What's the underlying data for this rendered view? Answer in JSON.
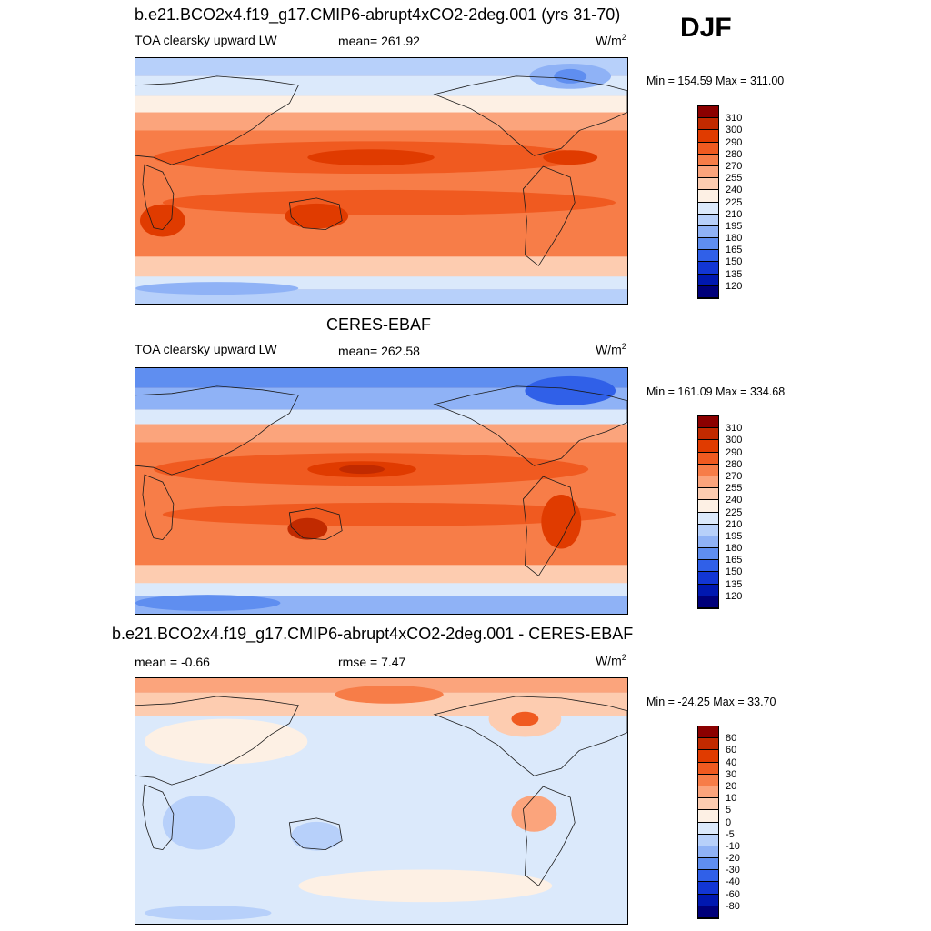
{
  "season": "DJF",
  "units_base": "W/m",
  "units_exp": "2",
  "panels": [
    {
      "title": "b.e21.BCO2x4.f19_g17.CMIP6-abrupt4xCO2-2deg.001 (yrs 31-70)",
      "left_label": "TOA clearsky upward LW",
      "center_label": "mean= 261.92",
      "minmax": "Min = 154.59 Max = 311.00"
    },
    {
      "title": "CERES-EBAF",
      "left_label": "TOA clearsky upward LW",
      "center_label": "mean= 262.58",
      "minmax": "Min = 161.09 Max = 334.68"
    },
    {
      "title": "b.e21.BCO2x4.f19_g17.CMIP6-abrupt4xCO2-2deg.001 - CERES-EBAF",
      "left_label": "mean =  -0.66",
      "center_label": "rmse =   7.47",
      "minmax": "Min = -24.25 Max =  33.70"
    }
  ],
  "colorbars": {
    "field": {
      "labels": [
        "310",
        "300",
        "290",
        "280",
        "270",
        "255",
        "240",
        "225",
        "210",
        "195",
        "180",
        "165",
        "150",
        "135",
        "120"
      ],
      "colors": [
        "#8b0000",
        "#c12a00",
        "#e03b00",
        "#f05a20",
        "#f77d48",
        "#fba47c",
        "#fdccb0",
        "#fdf0e4",
        "#dbe9fb",
        "#b7d0fa",
        "#8fb2f6",
        "#5f8ef0",
        "#3060e8",
        "#1236d4",
        "#0018b0",
        "#00007a"
      ]
    },
    "diff": {
      "labels": [
        "80",
        "60",
        "40",
        "30",
        "20",
        "10",
        "5",
        "0",
        "-5",
        "-10",
        "-20",
        "-30",
        "-40",
        "-60",
        "-80"
      ],
      "colors": [
        "#8b0000",
        "#c12a00",
        "#e03b00",
        "#f05a20",
        "#f77d48",
        "#fba47c",
        "#fdccb0",
        "#fdf0e4",
        "#dbe9fb",
        "#b7d0fa",
        "#8fb2f6",
        "#5f8ef0",
        "#3060e8",
        "#1236d4",
        "#0018b0",
        "#00007a"
      ]
    }
  }
}
